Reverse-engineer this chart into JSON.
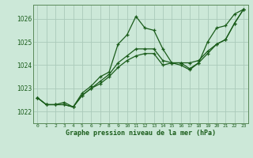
{
  "title": "Graphe pression niveau de la mer (hPa)",
  "background_color": "#cce8d8",
  "grid_color": "#aacaba",
  "line_color": "#1a5c1a",
  "spine_color": "#5a8a5a",
  "xlim": [
    -0.5,
    23.5
  ],
  "ylim": [
    1021.5,
    1026.6
  ],
  "yticks": [
    1022,
    1023,
    1024,
    1025,
    1026
  ],
  "xtick_labels": [
    "0",
    "1",
    "2",
    "3",
    "4",
    "5",
    "6",
    "7",
    "8",
    "9",
    "10",
    "11",
    "12",
    "13",
    "14",
    "15",
    "16",
    "17",
    "18",
    "19",
    "20",
    "21",
    "22",
    "23"
  ],
  "series1": [
    1022.6,
    1022.3,
    1022.3,
    1022.3,
    1022.2,
    1022.8,
    1023.1,
    1023.5,
    1023.7,
    1024.9,
    1025.3,
    1026.1,
    1025.6,
    1025.5,
    1024.7,
    1024.1,
    1024.0,
    1023.8,
    1024.1,
    1025.0,
    1025.6,
    1025.7,
    1026.2,
    1026.4
  ],
  "series2": [
    1022.6,
    1022.3,
    1022.3,
    1022.3,
    1022.2,
    1022.7,
    1023.0,
    1023.2,
    1023.5,
    1023.9,
    1024.2,
    1024.4,
    1024.5,
    1024.5,
    1024.0,
    1024.1,
    1024.1,
    1024.1,
    1024.2,
    1024.6,
    1024.9,
    1025.1,
    1025.8,
    1026.4
  ],
  "series3": [
    1022.6,
    1022.3,
    1022.3,
    1022.4,
    1022.2,
    1022.7,
    1023.0,
    1023.3,
    1023.6,
    1024.1,
    1024.4,
    1024.7,
    1024.7,
    1024.7,
    1024.2,
    1024.1,
    1024.1,
    1023.85,
    1024.1,
    1024.5,
    1024.9,
    1025.1,
    1025.8,
    1026.4
  ]
}
